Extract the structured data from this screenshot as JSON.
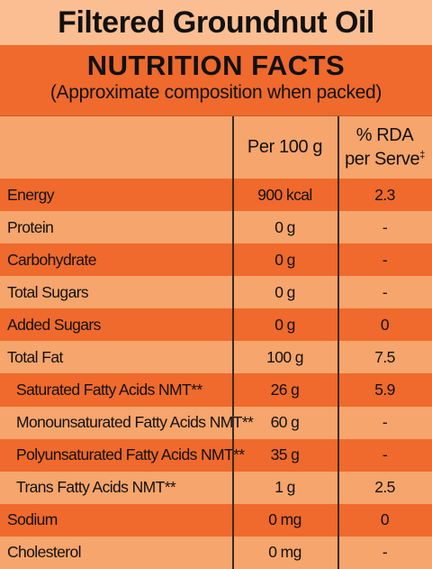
{
  "header": {
    "title": "Filtered Groundnut Oil"
  },
  "panel": {
    "title": "NUTRITION FACTS",
    "subtitle": "(Approximate composition when packed)"
  },
  "table": {
    "columns": {
      "per_100g": "Per 100 g",
      "rda": "% RDA",
      "rda_line2": "per Serve",
      "rda_mark": "‡"
    },
    "rows": [
      [
        "Energy",
        "900 kcal",
        "2.3"
      ],
      [
        "Protein",
        "0 g",
        "-"
      ],
      [
        "Carbohydrate",
        "0 g",
        "-"
      ],
      [
        "Total Sugars",
        "0 g",
        "-"
      ],
      [
        "Added Sugars",
        "0 g",
        "0"
      ],
      [
        "Total Fat",
        "100 g",
        "7.5"
      ],
      [
        "Saturated Fatty Acids NMT**",
        "26 g",
        "5.9"
      ],
      [
        "Monounsaturated Fatty Acids NMT**",
        "60 g",
        "-"
      ],
      [
        "Polyunsaturated Fatty Acids NMT**",
        "35 g",
        "-"
      ],
      [
        "Trans Fatty Acids NMT**",
        "1 g",
        "2.5"
      ],
      [
        "Sodium",
        "0 mg",
        "0"
      ],
      [
        "Cholesterol",
        "0 mg",
        "-"
      ]
    ]
  }
}
